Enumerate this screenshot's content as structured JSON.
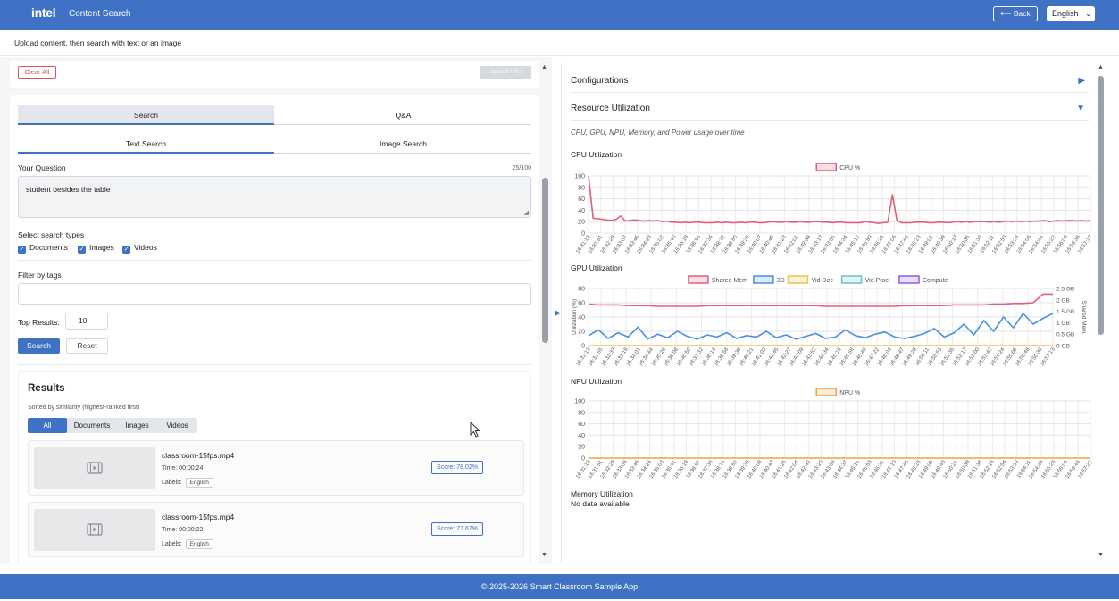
{
  "header": {
    "logo": "intel",
    "title": "Content Search",
    "back_label": "⟵ Back",
    "language": "English"
  },
  "subtitle": "Upload content, then search with text or an image",
  "upload_card": {
    "clear_label": "Clear All",
    "upload_label": "Upload Files"
  },
  "search_panel": {
    "tabs": [
      "Search",
      "Q&A"
    ],
    "subtabs": [
      "Text Search",
      "Image Search"
    ],
    "question_label": "Your Question",
    "char_count": "25/100",
    "question_value": "student besides the table",
    "types_label": "Select search types",
    "types": [
      "Documents",
      "Images",
      "Videos"
    ],
    "tags_label": "Filter by tags",
    "tags_value": "",
    "top_results_label": "Top Results:",
    "top_results_value": "10",
    "search_label": "Search",
    "reset_label": "Reset"
  },
  "results": {
    "title": "Results",
    "subtitle": "Sorted by similarity (highest-ranked first)",
    "filters": [
      "All",
      "Documents",
      "Images",
      "Videos"
    ],
    "items": [
      {
        "name": "classroom-15fps.mp4",
        "time": "Time: 00:00:24",
        "labels_label": "Labels:",
        "label": "English",
        "score": "Score: 78.02%"
      },
      {
        "name": "classroom-15fps.mp4",
        "time": "Time: 00:00:22",
        "labels_label": "Labels:",
        "label": "English",
        "score": "Score: 77.67%"
      }
    ]
  },
  "right_panel": {
    "configurations": "Configurations",
    "resource_title": "Resource Utilization",
    "description": "CPU, GPU, NPU, Memory, and Power usage over time",
    "cpu_title": "CPU Utilization",
    "gpu_title": "GPU Utilization",
    "npu_title": "NPU Utilization",
    "mem_title": "Memory Utilization",
    "mem_nodata": "No data available"
  },
  "colors": {
    "primary": "#3f72c4",
    "cpu": "#e0607a",
    "shared_mem": "#e0607a",
    "gpu_3d": "#4a8fe0",
    "vid_dec": "#f0c24a",
    "vid_proc": "#6cc3c0",
    "compute": "#8c5fe0",
    "npu": "#f0a040",
    "danger": "#d9534f"
  },
  "chart_data": [
    {
      "type": "line",
      "title": "CPU Utilization",
      "series": [
        {
          "name": "CPU %",
          "values": [
            100,
            26,
            25,
            24,
            23,
            22,
            24,
            30,
            21,
            22,
            23,
            22,
            21,
            22,
            21,
            22,
            20,
            21,
            19,
            19,
            18,
            19,
            18,
            19,
            19,
            18,
            18,
            18,
            19,
            18,
            19,
            18,
            18,
            19,
            18,
            19,
            19,
            18,
            18,
            19,
            20,
            19,
            19,
            20,
            19,
            19,
            20,
            19,
            19,
            20,
            20,
            19,
            19,
            18,
            19,
            19,
            18,
            18,
            18,
            18,
            20,
            19,
            18,
            17,
            18,
            19,
            67,
            22,
            18,
            18,
            18,
            19,
            19,
            19,
            18,
            18,
            19,
            19,
            18,
            19,
            20,
            19,
            20,
            19,
            20,
            20,
            20,
            19,
            20,
            19,
            20,
            21,
            20,
            21,
            20,
            21,
            20,
            21,
            21,
            22,
            20,
            21,
            22,
            21,
            22,
            22,
            21,
            22,
            21,
            22
          ]
        }
      ],
      "x_tick_labels": [
        "16:31:13",
        "16:31:51",
        "16:32:29",
        "16:33:07",
        "16:33:45",
        "16:34:23",
        "16:35:02",
        "16:35:40",
        "16:36:18",
        "16:36:56",
        "16:37:34",
        "16:38:12",
        "16:38:50",
        "16:39:29",
        "16:40:07",
        "16:40:45",
        "16:41:23",
        "16:42:01",
        "16:42:39",
        "16:43:17",
        "16:43:55",
        "16:44:34",
        "16:45:12",
        "16:45:50",
        "16:46:28",
        "16:47:06",
        "16:47:44",
        "16:48:23",
        "16:49:01",
        "16:49:39",
        "16:50:17",
        "16:50:55",
        "16:51:33",
        "16:52:11",
        "16:52:50",
        "16:53:28",
        "16:54:06",
        "16:54:44",
        "16:55:22",
        "16:56:00",
        "16:56:39",
        "16:57:17"
      ],
      "ylim": [
        0,
        100
      ],
      "y_ticks": [
        0,
        20,
        40,
        60,
        80,
        100
      ],
      "grid": true,
      "legend": "top-center"
    },
    {
      "type": "line",
      "title": "GPU Utilization",
      "ylabel": "Utilization (%)",
      "y2label": "Shared Mem",
      "series": [
        {
          "name": "Shared Mem",
          "axis": "right",
          "values": [
            58,
            57,
            57,
            57,
            56,
            56,
            56,
            55,
            55,
            55,
            55,
            55,
            56,
            56,
            56,
            56,
            56,
            56,
            56,
            56,
            56,
            56,
            56,
            56,
            55,
            55,
            55,
            55,
            55,
            55,
            55,
            55,
            56,
            56,
            56,
            56,
            56,
            57,
            57,
            57,
            57,
            58,
            58,
            59,
            59,
            60,
            72,
            72
          ]
        },
        {
          "name": "3D",
          "values": [
            14,
            22,
            10,
            18,
            12,
            26,
            9,
            16,
            11,
            20,
            13,
            9,
            15,
            12,
            18,
            10,
            14,
            12,
            20,
            11,
            15,
            9,
            13,
            17,
            10,
            12,
            22,
            14,
            11,
            16,
            19,
            12,
            10,
            13,
            17,
            24,
            12,
            18,
            30,
            15,
            35,
            20,
            40,
            25,
            45,
            30,
            38,
            45
          ]
        },
        {
          "name": "Vid Dec",
          "values": [
            0,
            0,
            0,
            0,
            0,
            0,
            0,
            0,
            0,
            0,
            0,
            0,
            0,
            0,
            0,
            0,
            0,
            0,
            0,
            0,
            0,
            0,
            0,
            0,
            0,
            0,
            0,
            0,
            0,
            0,
            0,
            0,
            0,
            0,
            0,
            0,
            0,
            0,
            0,
            0,
            0,
            0,
            0,
            0,
            0,
            0,
            0,
            0
          ]
        },
        {
          "name": "Vid Proc",
          "values": []
        },
        {
          "name": "Compute",
          "values": []
        }
      ],
      "x_tick_labels": [
        "16:31:13",
        "16:31:55",
        "16:32:37",
        "16:33:19",
        "16:34:01",
        "16:34:44",
        "16:35:26",
        "16:36:08",
        "16:36:50",
        "16:37:32",
        "16:38:14",
        "16:38:56",
        "16:39:38",
        "16:40:21",
        "16:41:03",
        "16:41:45",
        "16:42:27",
        "16:43:09",
        "16:43:52",
        "16:44:34",
        "16:45:16",
        "16:45:58",
        "16:46:40",
        "16:47:22",
        "16:48:04",
        "16:48:47",
        "16:49:29",
        "16:50:11",
        "16:50:53",
        "16:51:35",
        "16:52:17",
        "16:53:00",
        "16:53:42",
        "16:54:24",
        "16:55:06",
        "16:55:48",
        "16:56:30",
        "16:57:13"
      ],
      "ylim": [
        0,
        80
      ],
      "y_ticks": [
        0,
        20,
        40,
        60,
        80
      ],
      "y2_ticks": [
        "0 GB",
        "0.5 GB",
        "1 GB",
        "1.5 GB",
        "2 GB",
        "2.5 GB"
      ],
      "grid": true,
      "legend": "top-center"
    },
    {
      "type": "line",
      "title": "NPU Utilization",
      "series": [
        {
          "name": "NPU %",
          "values": [
            0,
            0,
            0,
            0,
            0,
            0,
            0,
            0,
            0,
            0,
            0,
            0
          ]
        }
      ],
      "x_tick_labels": [
        "16:31:13",
        "16:31:51",
        "16:32:29",
        "16:33:08",
        "16:33:46",
        "16:34:24",
        "16:35:03",
        "16:35:41",
        "16:36:19",
        "16:36:57",
        "16:37:36",
        "16:38:14",
        "16:38:52",
        "16:39:30",
        "16:40:09",
        "16:40:47",
        "16:41:25",
        "16:42:04",
        "16:42:42",
        "16:43:20",
        "16:43:58",
        "16:44:37",
        "16:45:15",
        "16:45:53",
        "16:46:31",
        "16:47:10",
        "16:47:48",
        "16:48:26",
        "16:49:05",
        "16:49:43",
        "16:50:21",
        "16:50:59",
        "16:51:38",
        "16:52:16",
        "16:52:54",
        "16:53:33",
        "16:54:11",
        "16:54:49",
        "16:55:28",
        "16:56:06",
        "16:56:44",
        "16:57:22"
      ],
      "ylim": [
        0,
        100
      ],
      "y_ticks": [
        0,
        20,
        40,
        60,
        80,
        100
      ],
      "grid": true,
      "legend": "top-center"
    }
  ]
}
